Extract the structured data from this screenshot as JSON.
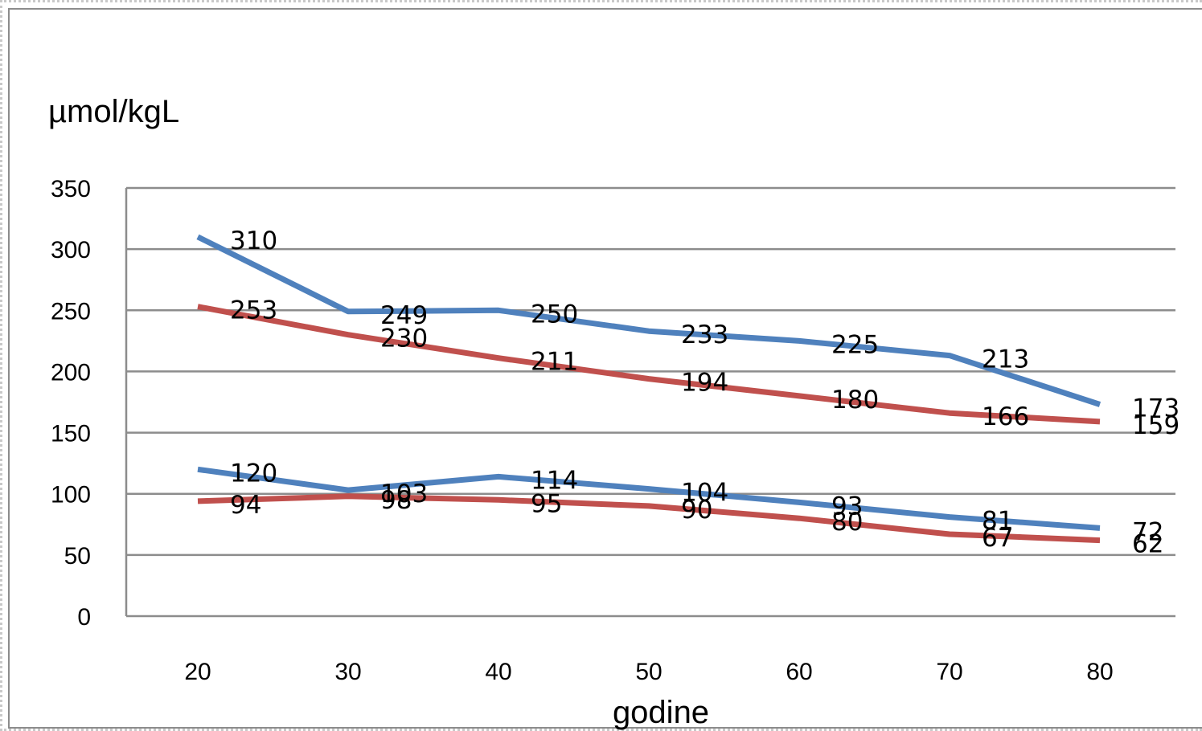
{
  "chart_data": {
    "type": "line",
    "title": "",
    "ylabel": "µmol/kgL",
    "xlabel": "godine",
    "x": [
      20,
      30,
      40,
      50,
      60,
      70,
      80
    ],
    "x_tick_labels": [
      "20",
      "30",
      "40",
      "50",
      "60",
      "70",
      "80"
    ],
    "y_tick_labels": [
      "0",
      "50",
      "100",
      "150",
      "200",
      "250",
      "300",
      "350"
    ],
    "ylim": [
      0,
      350
    ],
    "grid": true,
    "series": [
      {
        "values": [
          310,
          249,
          250,
          233,
          225,
          213,
          173
        ],
        "data_labels": [
          "310",
          "249",
          "250",
          "233",
          "225",
          "213",
          "173"
        ],
        "color": "#4f81bd"
      },
      {
        "values": [
          253,
          230,
          211,
          194,
          180,
          166,
          159
        ],
        "data_labels": [
          "253",
          "230",
          "211",
          "194",
          "180",
          "166",
          "159"
        ],
        "color": "#c0504d"
      },
      {
        "values": [
          120,
          103,
          114,
          104,
          93,
          81,
          72
        ],
        "data_labels": [
          "120",
          "103",
          "114",
          "104",
          "93",
          "81",
          "72"
        ],
        "color": "#4f81bd"
      },
      {
        "values": [
          94,
          98,
          95,
          90,
          80,
          67,
          62
        ],
        "data_labels": [
          "94",
          "98",
          "95",
          "90",
          "80",
          "67",
          "62"
        ],
        "color": "#c0504d"
      }
    ]
  },
  "colors": {
    "grid": "#8c8c8c",
    "axis": "#8c8c8c",
    "frame": "#8c8c8c"
  }
}
